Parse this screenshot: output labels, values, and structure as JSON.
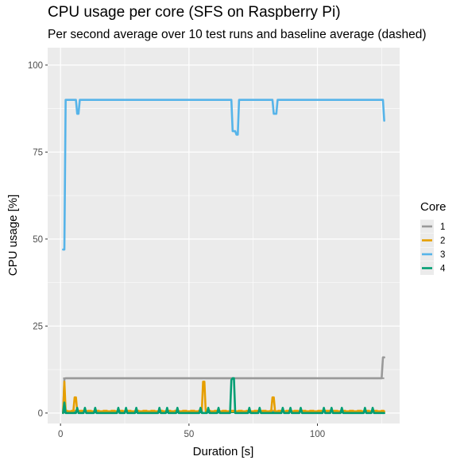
{
  "chart_data": {
    "type": "line",
    "title": "CPU usage per core (SFS on Raspberry Pi)",
    "subtitle": "Per second average over 10 test runs and baseline average (dashed)",
    "xlabel": "Duration [s]",
    "ylabel": "CPU usage [%]",
    "xlim": [
      -5,
      132
    ],
    "ylim": [
      -3,
      105
    ],
    "x_ticks": [
      0,
      50,
      100
    ],
    "y_ticks": [
      0,
      25,
      50,
      75,
      100
    ],
    "grid": true,
    "legend": {
      "title": "Core",
      "position": "right"
    },
    "series": [
      {
        "name": "1",
        "color": "#999999",
        "points": [
          [
            1,
            0
          ],
          [
            1.5,
            9.8
          ],
          [
            2,
            10
          ],
          [
            125,
            10
          ],
          [
            125.5,
            16
          ],
          [
            126,
            16
          ]
        ]
      },
      {
        "name": "2",
        "color": "#E69F00",
        "points": [
          [
            1,
            0
          ],
          [
            1.5,
            9
          ],
          [
            2,
            0.5
          ],
          [
            5,
            0.5
          ],
          [
            5.5,
            4.5
          ],
          [
            6,
            4.5
          ],
          [
            6.5,
            0.5
          ],
          [
            55,
            0.5
          ],
          [
            55.5,
            9
          ],
          [
            56,
            9
          ],
          [
            56.5,
            0.5
          ],
          [
            82,
            0.5
          ],
          [
            82.5,
            4.5
          ],
          [
            83,
            4.5
          ],
          [
            83.5,
            0.5
          ],
          [
            126,
            0.5
          ]
        ]
      },
      {
        "name": "3",
        "color": "#56B4E9",
        "points": [
          [
            1,
            47
          ],
          [
            1.5,
            47
          ],
          [
            2,
            90
          ],
          [
            6,
            90
          ],
          [
            6.5,
            86
          ],
          [
            7,
            86
          ],
          [
            7.5,
            90
          ],
          [
            66.5,
            90
          ],
          [
            67,
            81
          ],
          [
            68,
            81
          ],
          [
            68.5,
            80
          ],
          [
            69,
            80
          ],
          [
            69.5,
            90
          ],
          [
            82.5,
            90
          ],
          [
            83,
            86
          ],
          [
            84,
            86
          ],
          [
            84.5,
            90
          ],
          [
            125.5,
            90
          ],
          [
            126,
            84
          ]
        ]
      },
      {
        "name": "4",
        "color": "#009E73",
        "points": [
          [
            1,
            0
          ],
          [
            1.5,
            3
          ],
          [
            2,
            0
          ],
          [
            6,
            0
          ],
          [
            6.5,
            1.5
          ],
          [
            7,
            0
          ],
          [
            9,
            0
          ],
          [
            9.5,
            1.5
          ],
          [
            10,
            0
          ],
          [
            13,
            0
          ],
          [
            13.5,
            1.5
          ],
          [
            14,
            0
          ],
          [
            22,
            0
          ],
          [
            22.5,
            1.5
          ],
          [
            23,
            0
          ],
          [
            25,
            0
          ],
          [
            25.5,
            1.5
          ],
          [
            26,
            0
          ],
          [
            29,
            0
          ],
          [
            29.5,
            1.5
          ],
          [
            30,
            0
          ],
          [
            38,
            0
          ],
          [
            38.5,
            1.5
          ],
          [
            39,
            0
          ],
          [
            41,
            0
          ],
          [
            41.5,
            1.5
          ],
          [
            42,
            0
          ],
          [
            45,
            0
          ],
          [
            45.5,
            1.5
          ],
          [
            46,
            0
          ],
          [
            54,
            0
          ],
          [
            54.5,
            1.5
          ],
          [
            55,
            0
          ],
          [
            57,
            0
          ],
          [
            57.5,
            1.5
          ],
          [
            58,
            0
          ],
          [
            61,
            0
          ],
          [
            61.5,
            1.5
          ],
          [
            62,
            0
          ],
          [
            66,
            0
          ],
          [
            66.5,
            9.5
          ],
          [
            67,
            10
          ],
          [
            67.5,
            10
          ],
          [
            68,
            0
          ],
          [
            73,
            0
          ],
          [
            73.5,
            1.5
          ],
          [
            74,
            0
          ],
          [
            77,
            0
          ],
          [
            77.5,
            1.5
          ],
          [
            78,
            0
          ],
          [
            86,
            0
          ],
          [
            86.5,
            1.5
          ],
          [
            87,
            0
          ],
          [
            89,
            0
          ],
          [
            89.5,
            1.5
          ],
          [
            90,
            0
          ],
          [
            93,
            0
          ],
          [
            93.5,
            1.5
          ],
          [
            94,
            0
          ],
          [
            102,
            0
          ],
          [
            102.5,
            1.5
          ],
          [
            103,
            0
          ],
          [
            105,
            0
          ],
          [
            105.5,
            1.5
          ],
          [
            106,
            0
          ],
          [
            109,
            0
          ],
          [
            109.5,
            1.5
          ],
          [
            110,
            0
          ],
          [
            118,
            0
          ],
          [
            118.5,
            1.5
          ],
          [
            119,
            0
          ],
          [
            121,
            0
          ],
          [
            121.5,
            1.5
          ],
          [
            122,
            0
          ],
          [
            126,
            0
          ]
        ]
      }
    ],
    "baselines": [
      {
        "core": "1",
        "value": 10
      },
      {
        "core": "2",
        "value": 0.7
      },
      {
        "core": "3",
        "value": 0.3
      },
      {
        "core": "4",
        "value": 0.2
      }
    ]
  }
}
